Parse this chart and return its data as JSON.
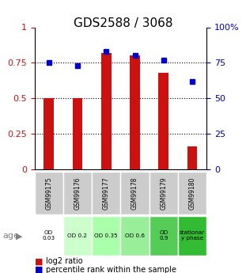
{
  "title": "GDS2588 / 3068",
  "samples": [
    "GSM99175",
    "GSM99176",
    "GSM99177",
    "GSM99178",
    "GSM99179",
    "GSM99180"
  ],
  "log2_ratio": [
    0.5,
    0.5,
    0.82,
    0.8,
    0.68,
    0.16
  ],
  "percentile_rank": [
    75,
    73,
    83,
    80,
    77,
    62
  ],
  "age_labels": [
    "OD\n0.03",
    "OD 0.2",
    "OD 0.35",
    "OD 0.6",
    "OD\n0.9",
    "stationar\ny phase"
  ],
  "age_row_colors": [
    "#ffffff",
    "#ccffcc",
    "#aaffaa",
    "#99ee99",
    "#55cc55",
    "#33bb33"
  ],
  "bar_color": "#cc1111",
  "dot_color": "#0000cc",
  "yticks_left": [
    0,
    0.25,
    0.5,
    0.75,
    1.0
  ],
  "yticks_left_labels": [
    "0",
    "0.25",
    "0.5",
    "0.75",
    "1"
  ],
  "yticks_right": [
    0,
    25,
    50,
    75,
    100
  ],
  "yticks_right_labels": [
    "0",
    "25",
    "50",
    "75",
    "100%"
  ],
  "dotted_lines": [
    0.25,
    0.5,
    0.75
  ],
  "legend_log2": "log2 ratio",
  "legend_pct": "percentile rank within the sample",
  "sample_bg_color": "#cccccc"
}
